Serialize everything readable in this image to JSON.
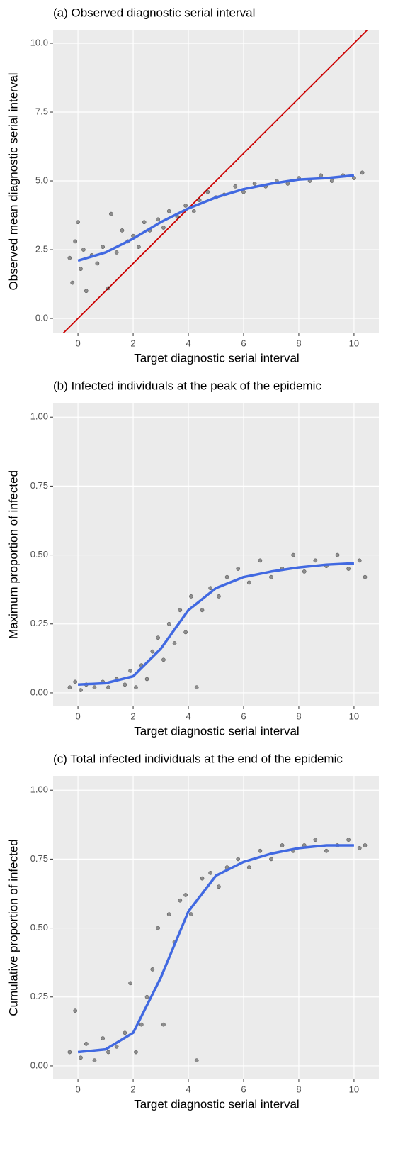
{
  "chart_data": [
    {
      "type": "scatter",
      "title": "(a) Observed diagnostic serial interval",
      "x_label": "Target diagnostic serial interval",
      "y_label": "Observed mean diagnostic serial interval",
      "xlim": [
        -0.9,
        10.9
      ],
      "ylim": [
        -0.54,
        10.49
      ],
      "xticks": [
        0,
        2,
        4,
        6,
        8,
        10
      ],
      "yticks": [
        {
          "value": 0,
          "label": "0.0"
        },
        2.5,
        {
          "value": 5,
          "label": "5.0"
        },
        7.5,
        {
          "value": 10,
          "label": "10.0"
        }
      ],
      "grid": true,
      "points": {
        "color": "#000000",
        "x": [
          -0.3,
          -0.2,
          -0.1,
          0,
          0.1,
          0.2,
          0.3,
          0.5,
          0.7,
          0.9,
          1.1,
          1.2,
          1.4,
          1.6,
          1.8,
          2.0,
          2.2,
          2.4,
          2.6,
          2.9,
          3.1,
          3.3,
          3.6,
          3.9,
          4.2,
          4.4,
          4.7,
          5.0,
          5.3,
          5.7,
          6.0,
          6.4,
          6.8,
          7.2,
          7.6,
          8.0,
          8.4,
          8.8,
          9.2,
          9.6,
          10.0,
          10.3
        ],
        "y": [
          2.2,
          1.3,
          2.8,
          3.5,
          1.8,
          2.5,
          1.0,
          2.3,
          2.0,
          2.6,
          1.1,
          3.8,
          2.4,
          3.2,
          2.8,
          3.0,
          2.6,
          3.5,
          3.2,
          3.6,
          3.3,
          3.9,
          3.7,
          4.1,
          3.9,
          4.3,
          4.6,
          4.4,
          4.5,
          4.8,
          4.6,
          4.9,
          4.8,
          5.0,
          4.9,
          5.1,
          5.0,
          5.2,
          5.0,
          5.2,
          5.1,
          5.3
        ]
      },
      "smooth": {
        "color": "#4169e1",
        "x": [
          0,
          1,
          2,
          3,
          4,
          5,
          6,
          7,
          8,
          9,
          10
        ],
        "y": [
          2.1,
          2.4,
          2.9,
          3.5,
          4.0,
          4.4,
          4.7,
          4.9,
          5.05,
          5.1,
          5.2
        ]
      },
      "reference_line": {
        "color": "#cc0000",
        "x": [
          -0.54,
          10.49
        ],
        "y": [
          -0.54,
          10.49
        ]
      }
    },
    {
      "type": "scatter",
      "title": "(b) Infected individuals at the peak of the epidemic",
      "x_label": "Target diagnostic serial interval",
      "y_label": "Maximum proportion of infected",
      "xlim": [
        -0.9,
        10.9
      ],
      "ylim": [
        -0.049,
        1.052
      ],
      "xticks": [
        0,
        2,
        4,
        6,
        8,
        10
      ],
      "yticks": [
        {
          "value": 0,
          "label": "0.00"
        },
        {
          "value": 0.25,
          "label": "0.25"
        },
        {
          "value": 0.5,
          "label": "0.50"
        },
        {
          "value": 0.75,
          "label": "0.75"
        },
        {
          "value": 1,
          "label": "1.00"
        }
      ],
      "grid": true,
      "points": {
        "color": "#000000",
        "x": [
          -0.3,
          -0.1,
          0.1,
          0.3,
          0.6,
          0.9,
          1.1,
          1.4,
          1.7,
          1.9,
          2.1,
          2.3,
          2.5,
          2.7,
          2.9,
          3.1,
          3.3,
          3.5,
          3.7,
          3.9,
          4.1,
          4.3,
          4.5,
          4.8,
          5.1,
          5.4,
          5.8,
          6.2,
          6.6,
          7.0,
          7.4,
          7.8,
          8.2,
          8.6,
          9.0,
          9.4,
          9.8,
          10.2,
          10.4
        ],
        "y": [
          0.02,
          0.04,
          0.01,
          0.03,
          0.02,
          0.04,
          0.02,
          0.05,
          0.03,
          0.08,
          0.02,
          0.1,
          0.05,
          0.15,
          0.2,
          0.12,
          0.25,
          0.18,
          0.3,
          0.22,
          0.35,
          0.02,
          0.3,
          0.38,
          0.35,
          0.42,
          0.45,
          0.4,
          0.48,
          0.42,
          0.45,
          0.5,
          0.44,
          0.48,
          0.46,
          0.5,
          0.45,
          0.48,
          0.42
        ]
      },
      "smooth": {
        "color": "#4169e1",
        "x": [
          0,
          1,
          2,
          3,
          4,
          5,
          6,
          7,
          8,
          9,
          10
        ],
        "y": [
          0.03,
          0.035,
          0.06,
          0.16,
          0.3,
          0.38,
          0.42,
          0.44,
          0.455,
          0.465,
          0.47
        ]
      }
    },
    {
      "type": "scatter",
      "title": "(c) Total infected individuals at the end of the epidemic",
      "x_label": "Target diagnostic serial interval",
      "y_label": "Cumulative proportion of infected",
      "xlim": [
        -0.9,
        10.9
      ],
      "ylim": [
        -0.049,
        1.052
      ],
      "xticks": [
        0,
        2,
        4,
        6,
        8,
        10
      ],
      "yticks": [
        {
          "value": 0,
          "label": "0.00"
        },
        {
          "value": 0.25,
          "label": "0.25"
        },
        {
          "value": 0.5,
          "label": "0.50"
        },
        {
          "value": 0.75,
          "label": "0.75"
        },
        {
          "value": 1,
          "label": "1.00"
        }
      ],
      "grid": true,
      "points": {
        "color": "#000000",
        "x": [
          -0.3,
          -0.1,
          0.1,
          0.3,
          0.6,
          0.9,
          1.1,
          1.4,
          1.7,
          1.9,
          2.1,
          2.3,
          2.5,
          2.7,
          2.9,
          3.1,
          3.3,
          3.5,
          3.7,
          3.9,
          4.1,
          4.3,
          4.5,
          4.8,
          5.1,
          5.4,
          5.8,
          6.2,
          6.6,
          7.0,
          7.4,
          7.8,
          8.2,
          8.6,
          9.0,
          9.4,
          9.8,
          10.2,
          10.4
        ],
        "y": [
          0.05,
          0.2,
          0.03,
          0.08,
          0.02,
          0.1,
          0.05,
          0.07,
          0.12,
          0.3,
          0.05,
          0.15,
          0.25,
          0.35,
          0.5,
          0.15,
          0.55,
          0.45,
          0.6,
          0.62,
          0.55,
          0.02,
          0.68,
          0.7,
          0.65,
          0.72,
          0.75,
          0.72,
          0.78,
          0.75,
          0.8,
          0.78,
          0.8,
          0.82,
          0.78,
          0.8,
          0.82,
          0.79,
          0.8
        ]
      },
      "smooth": {
        "color": "#4169e1",
        "x": [
          0,
          1,
          2,
          3,
          4,
          5,
          6,
          7,
          8,
          9,
          10
        ],
        "y": [
          0.05,
          0.06,
          0.12,
          0.32,
          0.56,
          0.69,
          0.74,
          0.77,
          0.79,
          0.8,
          0.8
        ]
      }
    }
  ]
}
